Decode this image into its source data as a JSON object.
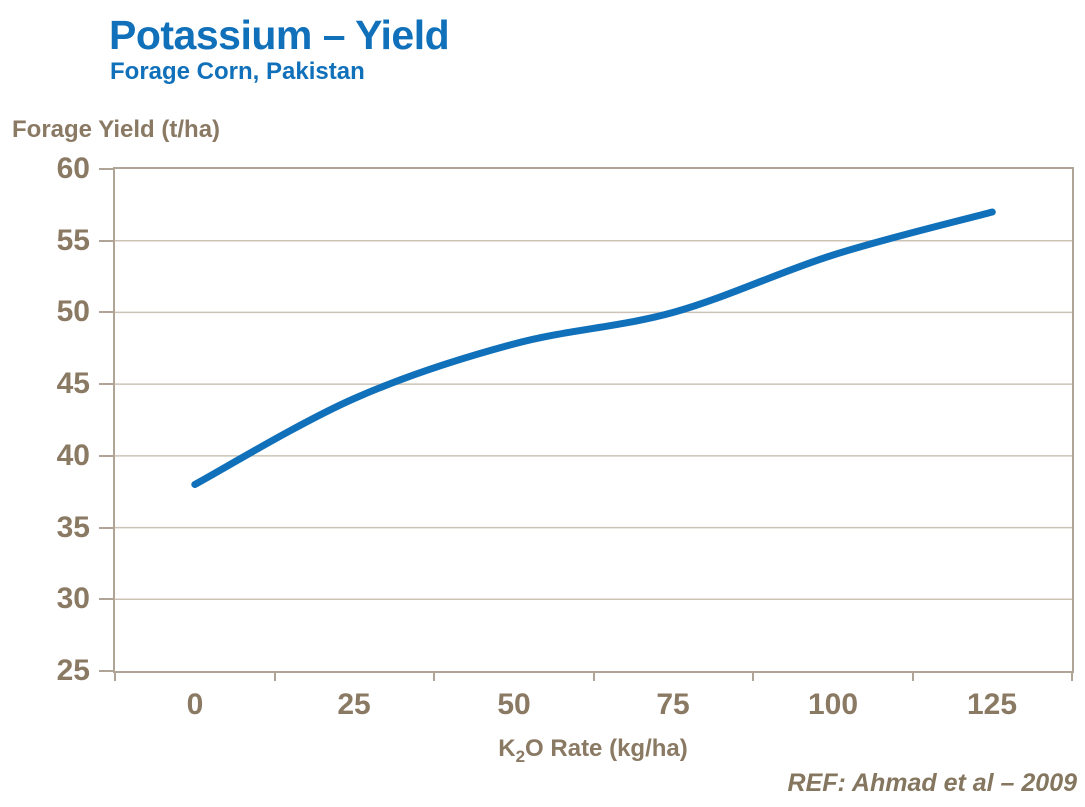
{
  "header": {
    "title": "Potassium – Yield",
    "subtitle": "Forage Corn, Pakistan"
  },
  "footer": {
    "ref_label": "REF:  Ahmad et al – 2009"
  },
  "colors": {
    "accent_blue": "#1070BA",
    "line_blue": "#1070BA",
    "text_brown": "#8A7963",
    "ref_brown": "#84765F",
    "axis_border": "#AFA495",
    "gridline": "#CCC3B6",
    "plot_background": "#FFFFFF"
  },
  "chart_data": {
    "type": "line",
    "title": "Potassium – Yield",
    "subtitle": "Forage Corn, Pakistan",
    "xlabel": "K2O Rate (kg/ha)",
    "xlabel_parts": {
      "prefix": "K",
      "subscript": "2",
      "suffix": "O Rate (kg/ha)"
    },
    "ylabel": "Forage Yield (t/ha)",
    "categories": [
      0,
      25,
      50,
      75,
      100,
      125
    ],
    "x_tick_labels": [
      "0",
      "25",
      "50",
      "75",
      "100",
      "125"
    ],
    "series": [
      {
        "name": "Forage Yield",
        "values": [
          38,
          44,
          47.8,
          50,
          54,
          57
        ],
        "color": "#1070BA"
      }
    ],
    "ylim": [
      25,
      60
    ],
    "y_ticks": [
      25,
      30,
      35,
      40,
      45,
      50,
      55,
      60
    ],
    "y_tick_labels": [
      "25",
      "30",
      "35",
      "40",
      "45",
      "50",
      "55",
      "60"
    ],
    "grid": "horizontal",
    "legend": "none",
    "line_smoothing": true,
    "markers": false,
    "annotation": "REF:  Ahmad et al – 2009"
  }
}
